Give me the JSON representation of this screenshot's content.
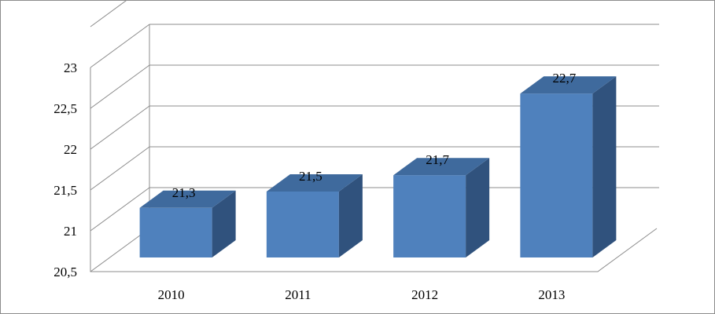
{
  "chart_data": {
    "type": "bar",
    "style": "3d-column",
    "categories": [
      "2010",
      "2011",
      "2012",
      "2013"
    ],
    "values": [
      21.3,
      21.5,
      21.7,
      22.7
    ],
    "value_labels": [
      "21,3",
      "21,5",
      "21,7",
      "22,7"
    ],
    "ylim": [
      20.5,
      23
    ],
    "yticks": [
      20.5,
      21,
      21.5,
      22,
      22.5,
      23
    ],
    "ytick_labels": [
      "20,5",
      "21",
      "21,5",
      "22",
      "22,5",
      "23"
    ],
    "grid": true,
    "legend": "none",
    "colors": {
      "bar_front": "#4f81bd",
      "bar_top": "#3f6a9d",
      "bar_side": "#30527d",
      "gridline": "#8c8c8c",
      "frame": "#8c8c8c"
    }
  }
}
